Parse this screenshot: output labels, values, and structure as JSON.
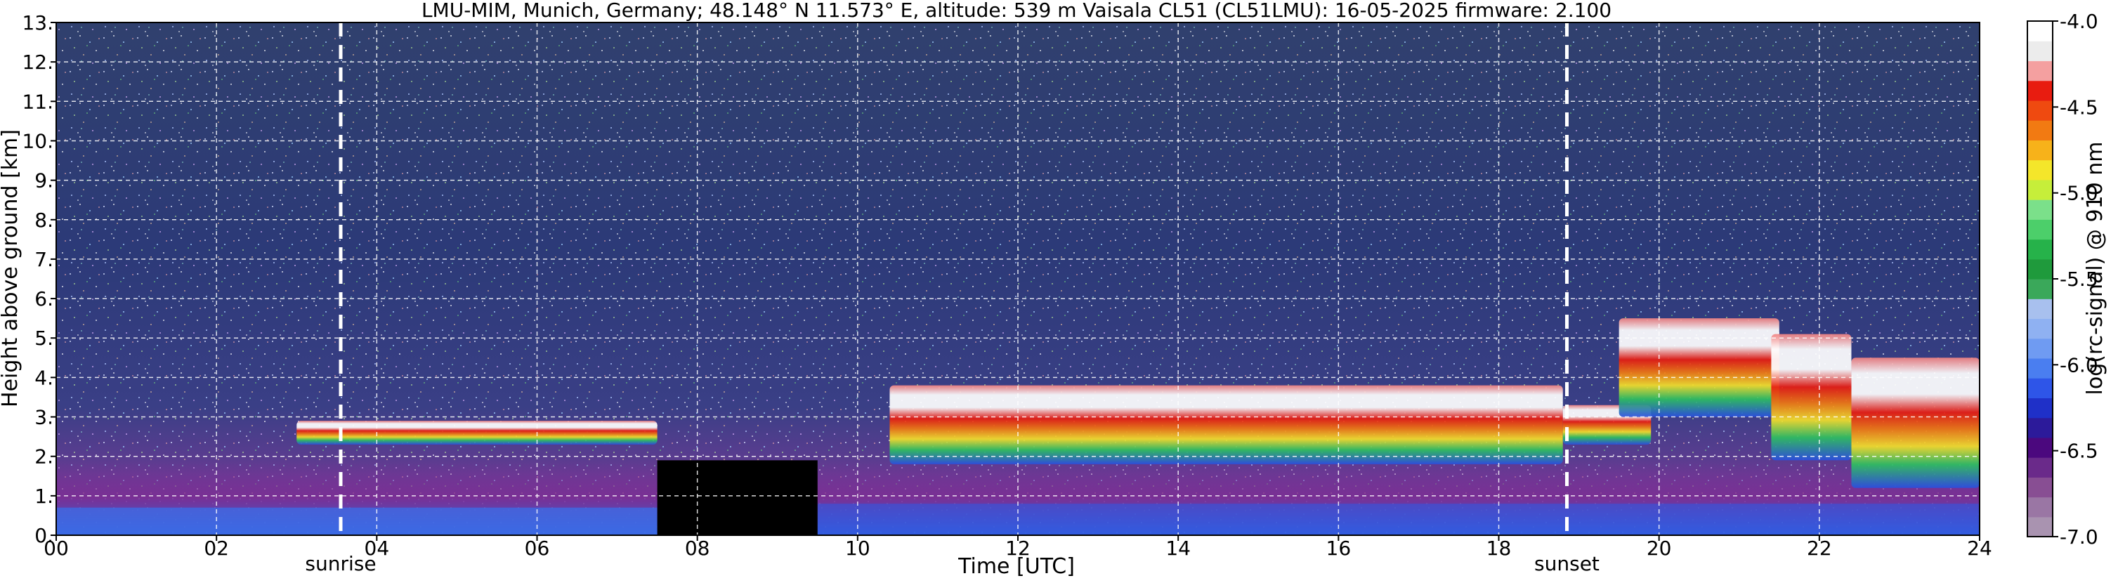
{
  "chart_data": {
    "type": "heatmap",
    "title": "LMU-MIM, Munich, Germany; 48.148° N 11.573° E, altitude: 539 m    Vaisala CL51 (CL51LMU): 16-05-2025    firmware: 2.100",
    "xlabel": "Time [UTC]",
    "ylabel": "Height above ground [km]",
    "colorbar_label": "log(rc-signal) @ 910 nm",
    "xlim": [
      0,
      24
    ],
    "ylim": [
      0,
      13
    ],
    "clim": [
      -7.0,
      -4.0
    ],
    "x_ticks": [
      0,
      2,
      4,
      6,
      8,
      10,
      12,
      14,
      16,
      18,
      20,
      22,
      24
    ],
    "x_tick_labels": [
      "00",
      "02",
      "04",
      "06",
      "08",
      "10",
      "12",
      "14",
      "16",
      "18",
      "20",
      "22",
      "24"
    ],
    "y_ticks": [
      0,
      1,
      2,
      3,
      4,
      5,
      6,
      7,
      8,
      9,
      10,
      11,
      12,
      13
    ],
    "y_tick_labels": [
      "0.",
      "1.",
      "2.",
      "3.",
      "4.",
      "5.",
      "6.",
      "7.",
      "8.",
      "9.",
      "10.",
      "11.",
      "12.",
      "13."
    ],
    "colorbar_ticks": [
      -7.0,
      -6.5,
      -6.0,
      -5.5,
      -5.0,
      -4.5,
      -4.0
    ],
    "colorbar_tick_labels": [
      "-7.0",
      "-6.5",
      "-6.0",
      "-5.5",
      "-5.0",
      "-4.5",
      "-4.0"
    ],
    "colormap": [
      "#a993b0",
      "#9a76a4",
      "#884e93",
      "#6a2a8a",
      "#4b087e",
      "#2c1a9a",
      "#1f30c8",
      "#2e55e8",
      "#4a7ef0",
      "#6f9bf2",
      "#8fb1f2",
      "#a8c0ee",
      "#3aa85a",
      "#1f9a3c",
      "#26b24a",
      "#4ccf6a",
      "#7be08a",
      "#c6ee3a",
      "#f4e62a",
      "#f7b21a",
      "#f27a12",
      "#ef4a10",
      "#e81c10",
      "#f4a0a0",
      "#ececec",
      "#ffffff"
    ],
    "grid": true,
    "annotations": [
      {
        "text": "sunrise",
        "x": 3.55
      },
      {
        "text": "sunset",
        "x": 18.85
      }
    ],
    "cloud_layers": [
      {
        "x": [
          3.0,
          7.5
        ],
        "base_km": 2.3,
        "top_km": 2.9
      },
      {
        "x": [
          10.4,
          18.8
        ],
        "base_km": 1.8,
        "top_km": 3.8
      },
      {
        "x": [
          18.8,
          19.9
        ],
        "base_km": 2.3,
        "top_km": 3.3
      },
      {
        "x": [
          19.5,
          21.5
        ],
        "base_km": 3.0,
        "top_km": 5.5
      },
      {
        "x": [
          21.4,
          22.4
        ],
        "base_km": 1.9,
        "top_km": 5.1
      },
      {
        "x": [
          22.4,
          24.0
        ],
        "base_km": 1.2,
        "top_km": 4.5
      }
    ],
    "no_data_gap": {
      "x": [
        7.5,
        9.5
      ],
      "top_km": 1.9
    }
  }
}
